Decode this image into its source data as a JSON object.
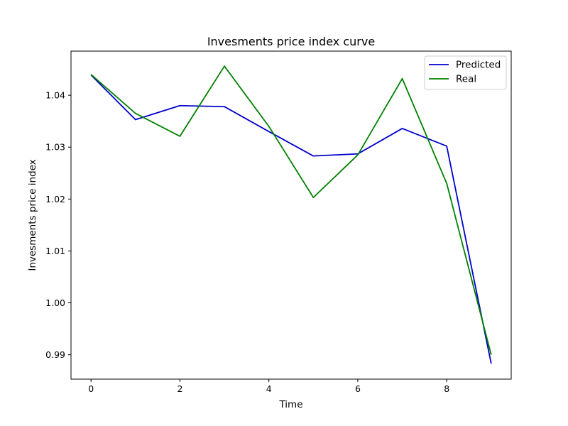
{
  "chart_data": {
    "type": "line",
    "title": "Invesments price index curve",
    "xlabel": "Time",
    "ylabel": "Invesments price index",
    "x": [
      0,
      1,
      2,
      3,
      4,
      5,
      6,
      7,
      8,
      9
    ],
    "series": [
      {
        "name": "Predicted",
        "color": "#0000cc",
        "values": [
          1.0439,
          1.0353,
          1.038,
          1.0378,
          1.033,
          1.0283,
          1.0287,
          1.0336,
          1.0302,
          0.9883
        ]
      },
      {
        "name": "Real",
        "color": "#008000",
        "values": [
          1.044,
          1.0365,
          1.0321,
          1.0456,
          1.034,
          1.0203,
          1.0285,
          1.0432,
          1.023,
          0.99
        ]
      }
    ],
    "xlim": [
      -0.45,
      9.45
    ],
    "ylim": [
      0.9853,
      1.0485
    ],
    "xticks": [
      0,
      2,
      4,
      6,
      8
    ],
    "yticks": [
      0.99,
      1.0,
      1.01,
      1.02,
      1.03,
      1.04
    ],
    "ytick_labels": [
      "0.99",
      "1.00",
      "1.01",
      "1.02",
      "1.03",
      "1.04"
    ],
    "grid": false,
    "legend_position": "top-right"
  }
}
